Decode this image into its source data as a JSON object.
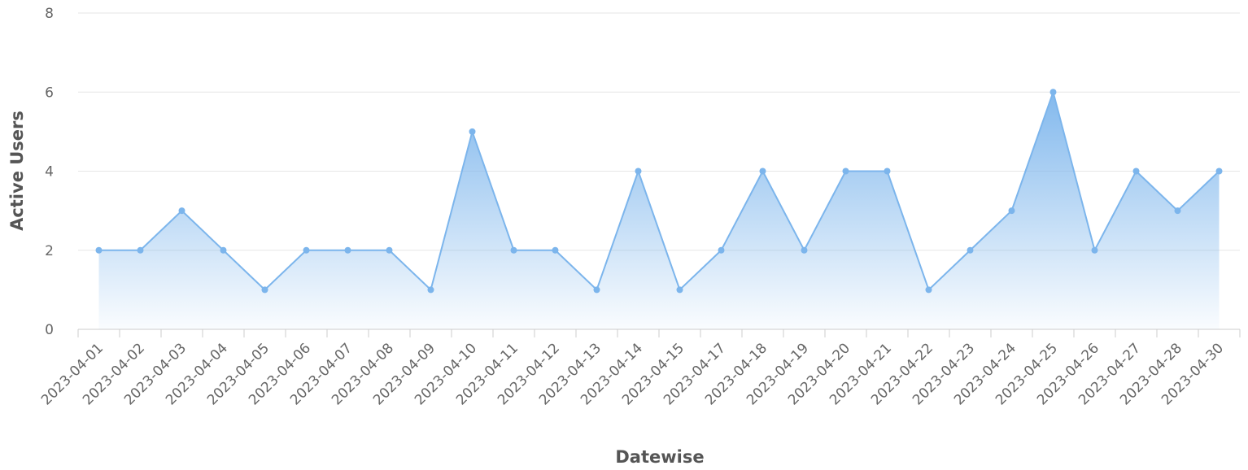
{
  "chart_data": {
    "type": "area",
    "xlabel": "Datewise",
    "ylabel": "Active Users",
    "ylim": [
      0,
      8
    ],
    "yticks": [
      "0",
      "2",
      "4",
      "6",
      "8"
    ],
    "grid": true,
    "legend": "none",
    "categories": [
      "2023-04-01",
      "2023-04-02",
      "2023-04-03",
      "2023-04-04",
      "2023-04-05",
      "2023-04-06",
      "2023-04-07",
      "2023-04-08",
      "2023-04-09",
      "2023-04-10",
      "2023-04-11",
      "2023-04-12",
      "2023-04-13",
      "2023-04-14",
      "2023-04-15",
      "2023-04-17",
      "2023-04-18",
      "2023-04-19",
      "2023-04-20",
      "2023-04-21",
      "2023-04-22",
      "2023-04-23",
      "2023-04-24",
      "2023-04-25",
      "2023-04-26",
      "2023-04-27",
      "2023-04-28",
      "2023-04-30"
    ],
    "values": [
      2,
      2,
      3,
      2,
      1,
      2,
      2,
      2,
      1,
      5,
      2,
      2,
      1,
      4,
      1,
      2,
      4,
      2,
      4,
      4,
      1,
      2,
      3,
      6,
      2,
      4,
      3,
      4
    ],
    "colors": {
      "line": "#7cb5ec",
      "fill_top": "#7cb5ec",
      "grid": "#e6e6e6",
      "axis": "#cccccc"
    }
  }
}
